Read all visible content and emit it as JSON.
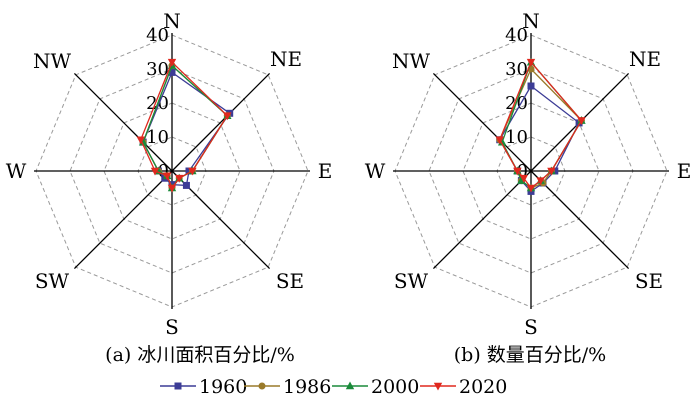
{
  "chart_data": [
    {
      "type": "radar",
      "caption": "(a) 冰川面积百分比/%",
      "directions": [
        "N",
        "NE",
        "E",
        "SE",
        "S",
        "SW",
        "W",
        "NW"
      ],
      "rlim": [
        0,
        40
      ],
      "rticks": [
        0,
        10,
        20,
        30,
        40
      ],
      "grid": true,
      "series": [
        {
          "name": "1960",
          "values": [
            29,
            24,
            5,
            6,
            4,
            3,
            4,
            12
          ]
        },
        {
          "name": "1986",
          "values": [
            31,
            23,
            6,
            3,
            5,
            2,
            4,
            12
          ]
        },
        {
          "name": "2000",
          "values": [
            31,
            23,
            6,
            3,
            5,
            2,
            4,
            12
          ]
        },
        {
          "name": "2020",
          "values": [
            32,
            23,
            6,
            3,
            5,
            2,
            5,
            13
          ]
        }
      ]
    },
    {
      "type": "radar",
      "caption": "(b) 数量百分比/%",
      "directions": [
        "N",
        "NE",
        "E",
        "SE",
        "S",
        "SW",
        "W",
        "NW"
      ],
      "rlim": [
        0,
        40
      ],
      "rticks": [
        0,
        10,
        20,
        30,
        40
      ],
      "grid": true,
      "series": [
        {
          "name": "1960",
          "values": [
            25,
            20,
            7,
            5,
            6,
            4,
            4,
            13
          ]
        },
        {
          "name": "1986",
          "values": [
            30,
            21,
            6,
            5,
            5,
            4,
            4,
            13
          ]
        },
        {
          "name": "2000",
          "values": [
            32,
            21,
            6,
            4,
            5,
            4,
            4,
            12
          ]
        },
        {
          "name": "2020",
          "values": [
            32,
            21,
            6,
            4,
            5,
            3,
            4,
            13
          ]
        }
      ]
    }
  ],
  "legend": [
    {
      "label": "1960",
      "color": "#3c3c96",
      "marker": "square"
    },
    {
      "label": "1986",
      "color": "#9a7a2a",
      "marker": "circle"
    },
    {
      "label": "2000",
      "color": "#1a8a3a",
      "marker": "triangle-up"
    },
    {
      "label": "2020",
      "color": "#e0281e",
      "marker": "triangle-down"
    }
  ]
}
